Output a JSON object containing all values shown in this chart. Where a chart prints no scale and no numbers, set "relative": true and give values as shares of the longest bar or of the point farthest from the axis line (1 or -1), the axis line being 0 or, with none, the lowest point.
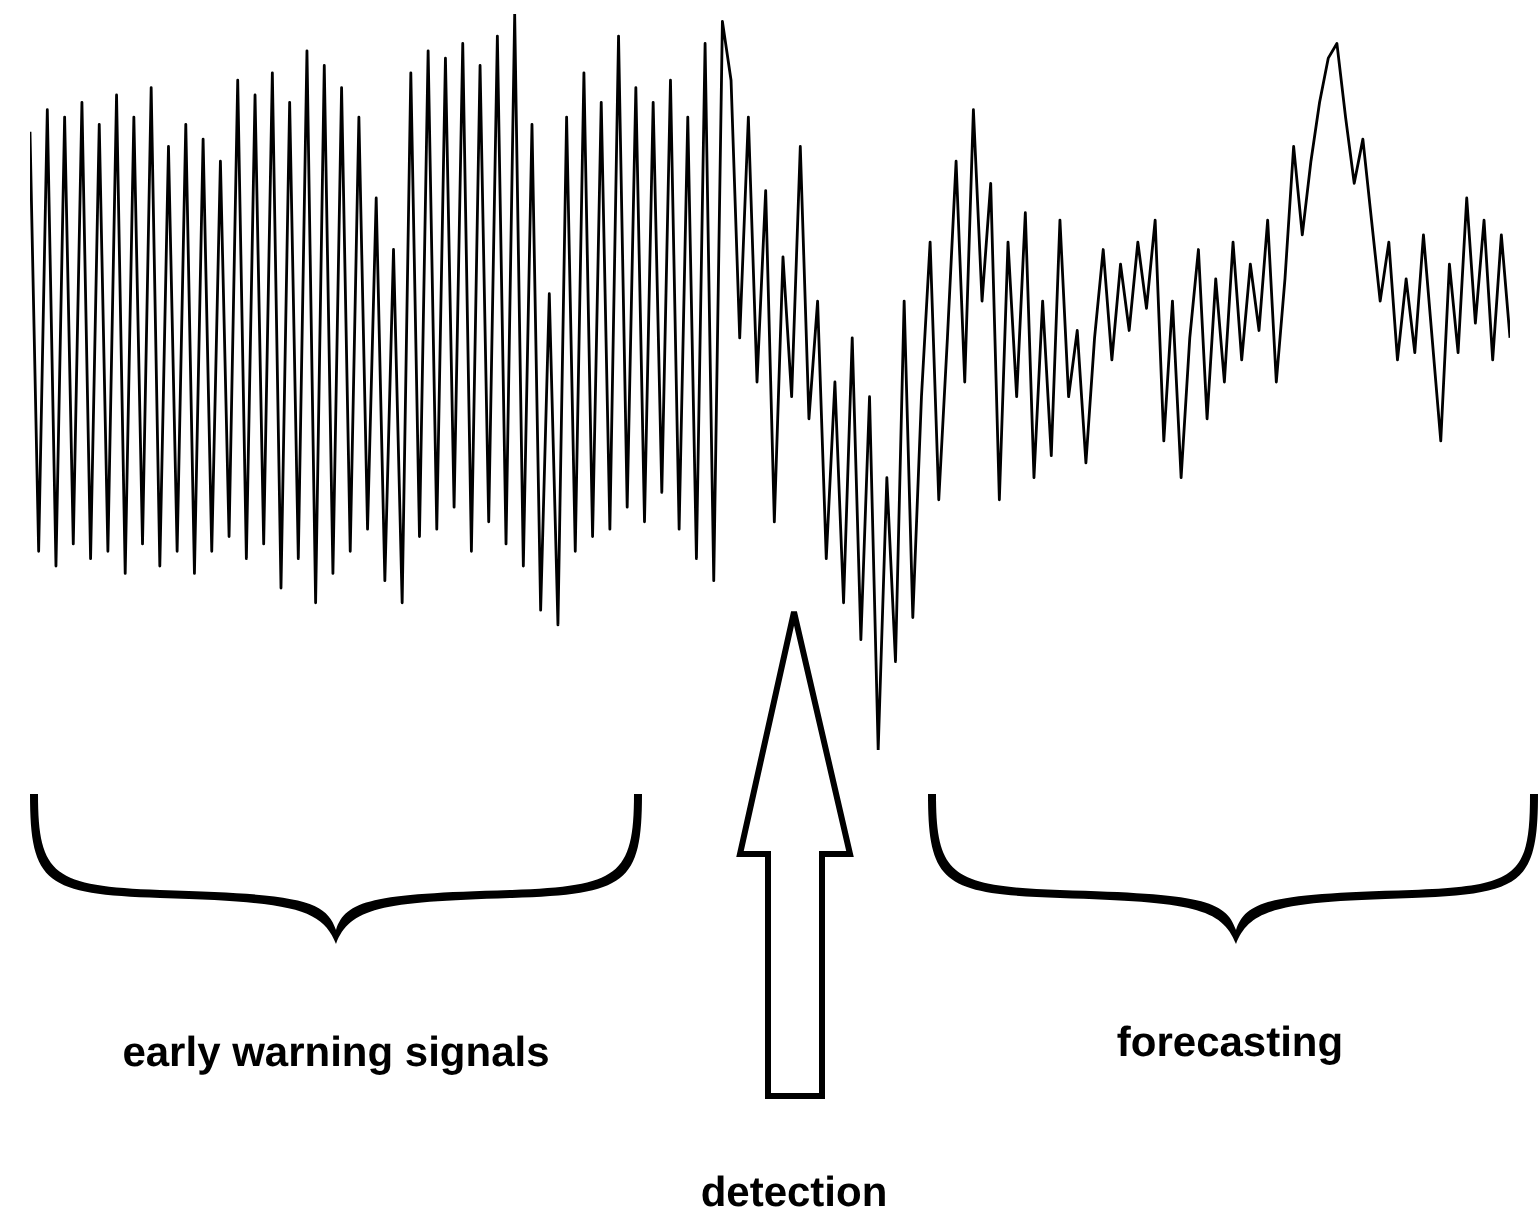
{
  "chart_data": {
    "type": "line",
    "relative": true,
    "annotations": [
      "early warning signals",
      "forecasting",
      "detection"
    ],
    "categories": [
      null,
      null,
      null,
      null,
      null,
      null,
      null,
      null,
      null,
      null,
      null,
      null,
      null,
      null,
      null,
      null,
      null,
      null,
      null,
      null,
      null,
      null,
      null,
      null,
      null,
      null,
      null,
      null,
      null,
      null,
      null,
      null,
      null,
      null,
      null,
      null,
      null,
      null,
      null,
      null,
      null,
      null,
      null,
      null,
      null,
      null,
      null,
      null,
      null,
      null,
      null,
      null,
      null,
      null,
      null,
      null,
      null,
      null,
      null,
      null,
      null,
      null,
      null,
      null,
      null,
      null,
      null,
      null,
      null,
      null,
      null,
      null,
      null,
      null,
      null,
      null,
      null,
      null,
      null,
      null,
      null,
      null,
      null,
      null,
      null,
      null,
      null,
      null,
      null,
      null,
      null,
      null,
      null,
      null,
      null,
      null,
      null,
      null,
      null,
      null,
      null,
      null,
      null,
      null,
      null,
      null,
      null,
      null,
      null,
      null,
      null,
      null,
      null,
      null,
      null,
      null,
      null,
      null,
      null,
      null,
      null,
      null,
      null,
      null,
      null,
      null,
      null,
      null,
      null,
      null,
      null,
      null,
      null,
      null,
      null,
      null,
      null,
      null,
      null,
      null,
      null,
      null,
      null,
      null,
      null,
      null,
      null,
      null,
      null,
      null,
      null,
      null,
      null,
      null,
      null,
      null,
      null,
      null,
      null,
      null,
      null,
      null,
      null,
      null,
      null,
      null,
      null,
      null,
      null,
      null,
      null,
      null
    ],
    "series": [
      {
        "color": "#000000",
        "values": [
          0.84,
          0.27,
          0.87,
          0.25,
          0.86,
          0.28,
          0.88,
          0.26,
          0.85,
          0.27,
          0.89,
          0.24,
          0.86,
          0.28,
          0.9,
          0.25,
          0.82,
          0.27,
          0.85,
          0.24,
          0.83,
          0.27,
          0.8,
          0.29,
          0.91,
          0.26,
          0.89,
          0.28,
          0.92,
          0.22,
          0.88,
          0.26,
          0.95,
          0.2,
          0.93,
          0.24,
          0.9,
          0.27,
          0.86,
          0.3,
          0.75,
          0.23,
          0.68,
          0.2,
          0.92,
          0.29,
          0.95,
          0.3,
          0.94,
          0.33,
          0.96,
          0.27,
          0.93,
          0.31,
          0.97,
          0.28,
          1.0,
          0.25,
          0.85,
          0.19,
          0.62,
          0.17,
          0.86,
          0.27,
          0.92,
          0.29,
          0.88,
          0.3,
          0.97,
          0.33,
          0.9,
          0.31,
          0.88,
          0.35,
          0.91,
          0.3,
          0.86,
          0.26,
          0.96,
          0.23,
          0.99,
          0.91,
          0.56,
          0.86,
          0.5,
          0.76,
          0.31,
          0.67,
          0.48,
          0.82,
          0.45,
          0.61,
          0.26,
          0.5,
          0.2,
          0.56,
          0.15,
          0.48,
          0.0,
          0.37,
          0.12,
          0.61,
          0.18,
          0.48,
          0.69,
          0.34,
          0.56,
          0.8,
          0.5,
          0.87,
          0.61,
          0.77,
          0.34,
          0.69,
          0.48,
          0.73,
          0.37,
          0.61,
          0.4,
          0.72,
          0.48,
          0.57,
          0.39,
          0.56,
          0.68,
          0.53,
          0.66,
          0.57,
          0.69,
          0.6,
          0.72,
          0.42,
          0.61,
          0.37,
          0.56,
          0.68,
          0.45,
          0.64,
          0.5,
          0.69,
          0.53,
          0.66,
          0.57,
          0.72,
          0.5,
          0.64,
          0.82,
          0.7,
          0.8,
          0.88,
          0.94,
          0.96,
          0.86,
          0.77,
          0.83,
          0.72,
          0.61,
          0.69,
          0.53,
          0.64,
          0.54,
          0.7,
          0.56,
          0.42,
          0.66,
          0.54,
          0.75,
          0.58,
          0.72,
          0.53,
          0.7,
          0.56
        ]
      }
    ]
  }
}
